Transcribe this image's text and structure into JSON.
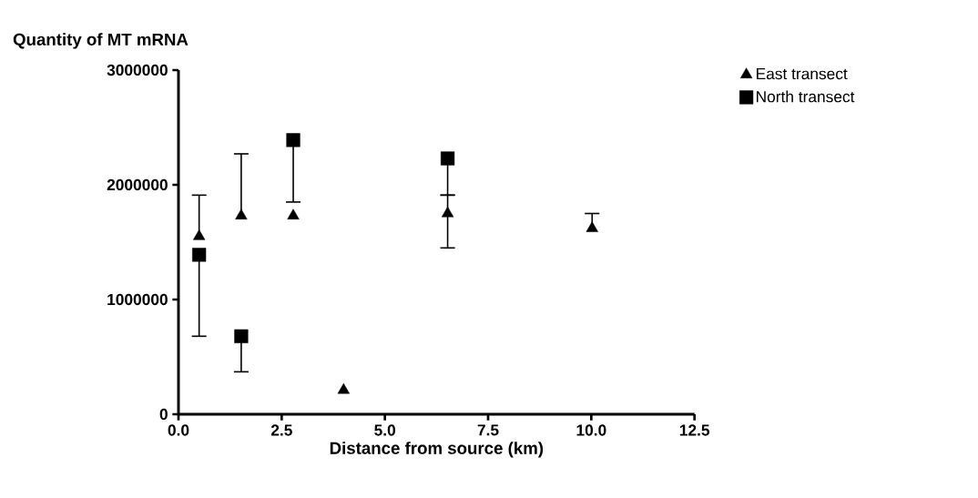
{
  "chart_data": {
    "type": "scatter",
    "xlabel": "Distance from source (km)",
    "ylabel": "Quantity of MT mRNA",
    "xlim": [
      0,
      12.5
    ],
    "ylim": [
      0,
      3000000
    ],
    "xticks": [
      {
        "value": 0,
        "label": "0.0"
      },
      2.5,
      {
        "value": 5,
        "label": "5.0"
      },
      7.5,
      {
        "value": 10,
        "label": "10.0"
      },
      12.5
    ],
    "yticks": [
      0,
      1000000,
      2000000,
      3000000
    ],
    "legend": "top right",
    "grid": false,
    "series": [
      {
        "name": "East transect",
        "color": "#000000",
        "marker": "triangle",
        "x": [
          0.5,
          1.52,
          2.78,
          4.0,
          6.52,
          10.02
        ],
        "values": [
          1550000,
          1730000,
          1730000,
          210000,
          1750000,
          1620000
        ],
        "errors": [
          [
            1550000,
            1910000
          ],
          [
            1730000,
            2270000
          ],
          null,
          null,
          [
            1450000,
            1910000
          ],
          [
            1620000,
            1750000
          ]
        ]
      },
      {
        "name": "North transect",
        "color": "#000000",
        "marker": "square",
        "x": [
          0.5,
          1.52,
          2.78,
          6.52
        ],
        "values": [
          1390000,
          680000,
          2390000,
          2230000
        ],
        "errors": [
          [
            680000,
            1390000
          ],
          [
            370000,
            680000
          ],
          [
            1850000,
            2390000
          ],
          [
            1910000,
            2230000
          ]
        ]
      }
    ]
  }
}
